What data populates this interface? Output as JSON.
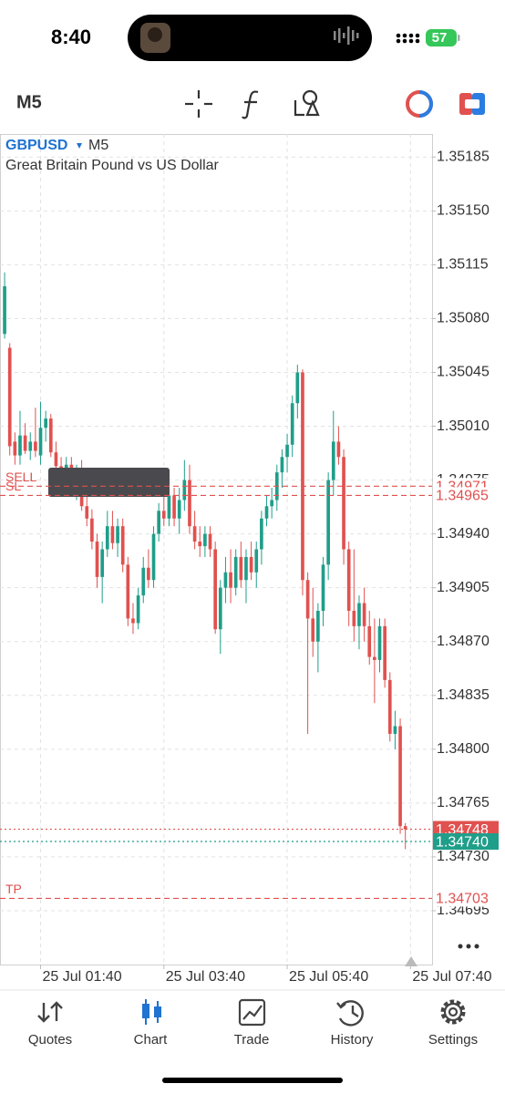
{
  "status": {
    "time": "8:40",
    "battery": "57"
  },
  "toolbar": {
    "timeframe": "M5"
  },
  "chart_data": {
    "type": "candlestick",
    "title": "GBPUSD",
    "timeframe": "M5",
    "subtitle": "Great Britain Pound vs US Dollar",
    "up_color": "#1f9e8a",
    "down_color": "#e0514f",
    "open": [
      1.3507,
      1.35061,
      1.35,
      1.34991,
      1.35004,
      1.34994,
      1.35,
      1.34991,
      1.35009,
      1.35015,
      1.34993,
      1.34984,
      1.34975,
      1.34985,
      1.34968,
      1.3498,
      1.34958,
      1.3495,
      1.34935,
      1.34912,
      1.3493,
      1.34945,
      1.34934,
      1.34945,
      1.3492,
      1.34885,
      1.34882,
      1.349,
      1.34918,
      1.3491,
      1.3494,
      1.34955,
      1.3495,
      1.34965,
      1.3495,
      1.34962,
      1.34975,
      1.34945,
      1.34935,
      1.34932,
      1.3494,
      1.3493,
      1.34878,
      1.34905,
      1.34915,
      1.34905,
      1.34925,
      1.3491,
      1.34925,
      1.34915,
      1.3493,
      1.3495,
      1.34958,
      1.34962,
      1.3498,
      1.3499,
      1.34998,
      1.35025,
      1.35045,
      1.3491,
      1.34885,
      1.3487,
      1.3489,
      1.3492,
      1.34975,
      1.35,
      1.3499,
      1.3493,
      1.3489,
      1.3488,
      1.34895,
      1.3488,
      1.3486,
      1.34858,
      1.3488,
      1.34845,
      1.3481,
      1.34815,
      1.3475
    ],
    "high": [
      1.3511,
      1.35064,
      1.35006,
      1.3502,
      1.35012,
      1.35006,
      1.35022,
      1.35026,
      1.3502,
      1.35018,
      1.35,
      1.3499,
      1.3499,
      1.3499,
      1.34985,
      1.34988,
      1.34965,
      1.34956,
      1.3494,
      1.34935,
      1.34955,
      1.34955,
      1.3495,
      1.3495,
      1.34925,
      1.34895,
      1.34905,
      1.34925,
      1.3493,
      1.34945,
      1.3496,
      1.34965,
      1.34975,
      1.3497,
      1.3497,
      1.34988,
      1.34985,
      1.34955,
      1.34945,
      1.34945,
      1.34945,
      1.34935,
      1.3491,
      1.34925,
      1.3493,
      1.3493,
      1.34935,
      1.3493,
      1.34935,
      1.34935,
      1.34955,
      1.34965,
      1.3497,
      1.34985,
      1.34995,
      1.35005,
      1.3503,
      1.3505,
      1.35047,
      1.34915,
      1.34905,
      1.34895,
      1.34925,
      1.3498,
      1.3502,
      1.3501,
      1.34995,
      1.34935,
      1.3493,
      1.349,
      1.34905,
      1.3489,
      1.34885,
      1.34885,
      1.34885,
      1.3485,
      1.34825,
      1.3482,
      1.34752
    ],
    "low": [
      1.35067,
      1.34991,
      1.34985,
      1.34985,
      1.34992,
      1.34988,
      1.3499,
      1.34985,
      1.35,
      1.3499,
      1.3498,
      1.34972,
      1.3497,
      1.34965,
      1.34962,
      1.34955,
      1.34945,
      1.3493,
      1.34905,
      1.34895,
      1.34925,
      1.3493,
      1.34925,
      1.34915,
      1.3488,
      1.34875,
      1.34878,
      1.34895,
      1.34905,
      1.34905,
      1.34935,
      1.34945,
      1.34945,
      1.34945,
      1.3494,
      1.34955,
      1.3494,
      1.3493,
      1.34925,
      1.34925,
      1.34925,
      1.34875,
      1.34862,
      1.34895,
      1.34895,
      1.349,
      1.34905,
      1.34895,
      1.3491,
      1.34905,
      1.3492,
      1.34945,
      1.3495,
      1.34955,
      1.3497,
      1.3498,
      1.3499,
      1.35015,
      1.349,
      1.3481,
      1.3486,
      1.3485,
      1.3488,
      1.3491,
      1.34965,
      1.34985,
      1.3492,
      1.3488,
      1.3487,
      1.34865,
      1.3487,
      1.34855,
      1.3483,
      1.3485,
      1.3484,
      1.34805,
      1.348,
      1.34745,
      1.34735
    ],
    "close": [
      1.35101,
      1.34997,
      1.34991,
      1.35004,
      1.34994,
      1.35,
      1.34994,
      1.35009,
      1.35015,
      1.34993,
      1.34984,
      1.34975,
      1.34985,
      1.34968,
      1.3498,
      1.34958,
      1.3495,
      1.34935,
      1.34912,
      1.3493,
      1.34945,
      1.34934,
      1.34945,
      1.3492,
      1.34885,
      1.34882,
      1.349,
      1.34918,
      1.3491,
      1.3494,
      1.34955,
      1.3495,
      1.34965,
      1.3495,
      1.34962,
      1.34975,
      1.34945,
      1.34935,
      1.34932,
      1.3494,
      1.3493,
      1.34878,
      1.34905,
      1.34915,
      1.34905,
      1.34925,
      1.3491,
      1.34925,
      1.34915,
      1.3493,
      1.3495,
      1.34958,
      1.34962,
      1.3498,
      1.3499,
      1.34998,
      1.35025,
      1.35045,
      1.3491,
      1.34885,
      1.3487,
      1.3489,
      1.3492,
      1.34975,
      1.35,
      1.3499,
      1.3493,
      1.3489,
      1.3488,
      1.34895,
      1.3488,
      1.3486,
      1.34858,
      1.3488,
      1.34845,
      1.3481,
      1.34815,
      1.3475,
      1.34748
    ],
    "xlim": [
      -0.9,
      83.2
    ],
    "xticks": [
      {
        "value": 7,
        "label": "25 Jul 01:40"
      },
      {
        "value": 31,
        "label": "25 Jul 03:40"
      },
      {
        "value": 55,
        "label": "25 Jul 05:40"
      },
      {
        "value": 79,
        "label": "25 Jul 07:40"
      }
    ],
    "ylim": [
      1.3466,
      1.352
    ],
    "yticks": [
      1.35185,
      {
        "value": 1.3515,
        "label": "1.35150"
      },
      1.35115,
      {
        "value": 1.3508,
        "label": "1.35080"
      },
      1.35045,
      {
        "value": 1.3501,
        "label": "1.35010"
      },
      1.34975,
      {
        "value": 1.3494,
        "label": "1.34940"
      },
      1.34905,
      {
        "value": 1.3487,
        "label": "1.34870"
      },
      1.34835,
      {
        "value": 1.348,
        "label": "1.34800"
      },
      1.34765,
      {
        "value": 1.3473,
        "label": "1.34730"
      },
      1.34695
    ],
    "grid": true,
    "levels": [
      {
        "name": "SELL",
        "value": 1.34971,
        "color": "#e0514f",
        "dash": "dashed",
        "filled": false
      },
      {
        "name": "SL",
        "value": 1.34965,
        "color": "#e0514f",
        "dash": "dashed",
        "filled": false
      },
      {
        "value": 1.34748,
        "color": "#e0514f",
        "dash": "dotted",
        "filled": true
      },
      {
        "value": 1.3474,
        "label": "1.34740",
        "color": "#1f9e8a",
        "dash": "dotted",
        "filled": true
      },
      {
        "name": "TP",
        "value": 1.34703,
        "color": "#e0514f",
        "dash": "dashed",
        "filled": false
      }
    ]
  },
  "tabs": [
    "Quotes",
    "Chart",
    "Trade",
    "History",
    "Settings"
  ],
  "active_tab": 1
}
